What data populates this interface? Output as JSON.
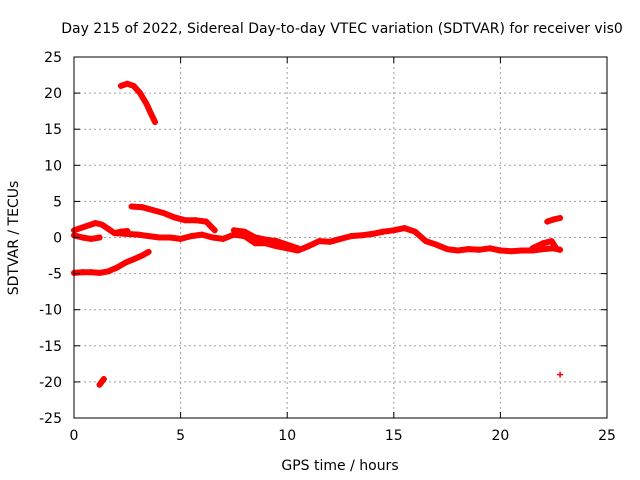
{
  "chart_data": {
    "type": "scatter",
    "title": "Day 215 of 2022, Sidereal Day-to-day VTEC variation (SDTVAR) for receiver vis0",
    "xlabel": "GPS time / hours",
    "ylabel": "SDTVAR / TECUs",
    "xlim": [
      0,
      25
    ],
    "ylim": [
      -25,
      25
    ],
    "xticks": [
      0,
      5,
      10,
      15,
      20,
      25
    ],
    "yticks": [
      -25,
      -20,
      -15,
      -10,
      -5,
      0,
      5,
      10,
      15,
      20,
      25
    ],
    "grid": true,
    "marker_color": "#ff0000",
    "series": [
      {
        "name": "vis0",
        "arcs": [
          {
            "name": "arc-high",
            "x": [
              2.2,
              2.5,
              2.8,
              3.1,
              3.4,
              3.6,
              3.8
            ],
            "y": [
              21.0,
              21.3,
              21.0,
              20.0,
              18.5,
              17.2,
              16.0
            ]
          },
          {
            "name": "arc-upper",
            "x": [
              2.7,
              3.2,
              3.7,
              4.2,
              4.7,
              5.2,
              5.7,
              6.2,
              6.6
            ],
            "y": [
              4.3,
              4.2,
              3.8,
              3.4,
              2.8,
              2.4,
              2.4,
              2.2,
              1.0
            ]
          },
          {
            "name": "arc-low",
            "x": [
              0.0,
              0.4,
              0.8,
              1.2,
              1.6,
              2.0,
              2.4,
              2.8,
              3.2,
              3.5
            ],
            "y": [
              -4.9,
              -4.8,
              -4.8,
              -4.9,
              -4.7,
              -4.2,
              -3.5,
              -3.0,
              -2.5,
              -2.0
            ]
          },
          {
            "name": "arc-start",
            "x": [
              0.0,
              0.5,
              1.0,
              1.3,
              1.6,
              1.9,
              2.2,
              2.5
            ],
            "y": [
              1.0,
              1.5,
              2.0,
              1.8,
              1.2,
              0.6,
              0.8,
              0.9
            ]
          },
          {
            "name": "arc-start-lower",
            "x": [
              0.0,
              0.4,
              0.8,
              1.2
            ],
            "y": [
              0.3,
              0.0,
              -0.2,
              0.0
            ]
          },
          {
            "name": "arc-main",
            "x": [
              2.0,
              3.0,
              4.0,
              4.5,
              5.0,
              5.5,
              6.0,
              6.5,
              7.0,
              7.5,
              8.0,
              8.5,
              9.0,
              9.5,
              10.0,
              10.5,
              11.0,
              11.5,
              12.0,
              12.5,
              13.0,
              13.5,
              14.0,
              14.5,
              15.0,
              15.5,
              16.0,
              16.5,
              17.0,
              17.5,
              18.0,
              18.5,
              19.0,
              19.5,
              20.0,
              20.5,
              21.0,
              21.5,
              22.0,
              22.5,
              22.8
            ],
            "y": [
              0.6,
              0.4,
              0.0,
              0.0,
              -0.2,
              0.2,
              0.4,
              0.0,
              -0.2,
              0.4,
              0.2,
              -0.8,
              -0.8,
              -1.2,
              -1.5,
              -1.8,
              -1.2,
              -0.5,
              -0.6,
              -0.2,
              0.2,
              0.3,
              0.5,
              0.8,
              1.0,
              1.3,
              0.8,
              -0.5,
              -1.0,
              -1.6,
              -1.8,
              -1.6,
              -1.7,
              -1.5,
              -1.8,
              -1.9,
              -1.8,
              -1.8,
              -1.6,
              -1.5,
              -1.7
            ]
          },
          {
            "name": "arc-main-b",
            "x": [
              7.5,
              8.0,
              8.5,
              9.0,
              9.5,
              10.0,
              10.5
            ],
            "y": [
              1.0,
              0.8,
              0.0,
              -0.3,
              -0.5,
              -1.0,
              -1.5
            ]
          },
          {
            "name": "arc-late",
            "x": [
              21.5,
              22.0,
              22.4,
              22.6
            ],
            "y": [
              -1.5,
              -0.8,
              -0.5,
              -1.4
            ]
          },
          {
            "name": "arc-late-high",
            "x": [
              22.2,
              22.5,
              22.8
            ],
            "y": [
              2.2,
              2.5,
              2.7
            ]
          },
          {
            "name": "arc-neg20-early",
            "x": [
              1.2,
              1.3,
              1.4
            ],
            "y": [
              -20.4,
              -20.0,
              -19.6
            ]
          },
          {
            "name": "arc-neg19-late",
            "x": [
              22.8
            ],
            "y": [
              -19.0
            ]
          }
        ]
      }
    ]
  }
}
